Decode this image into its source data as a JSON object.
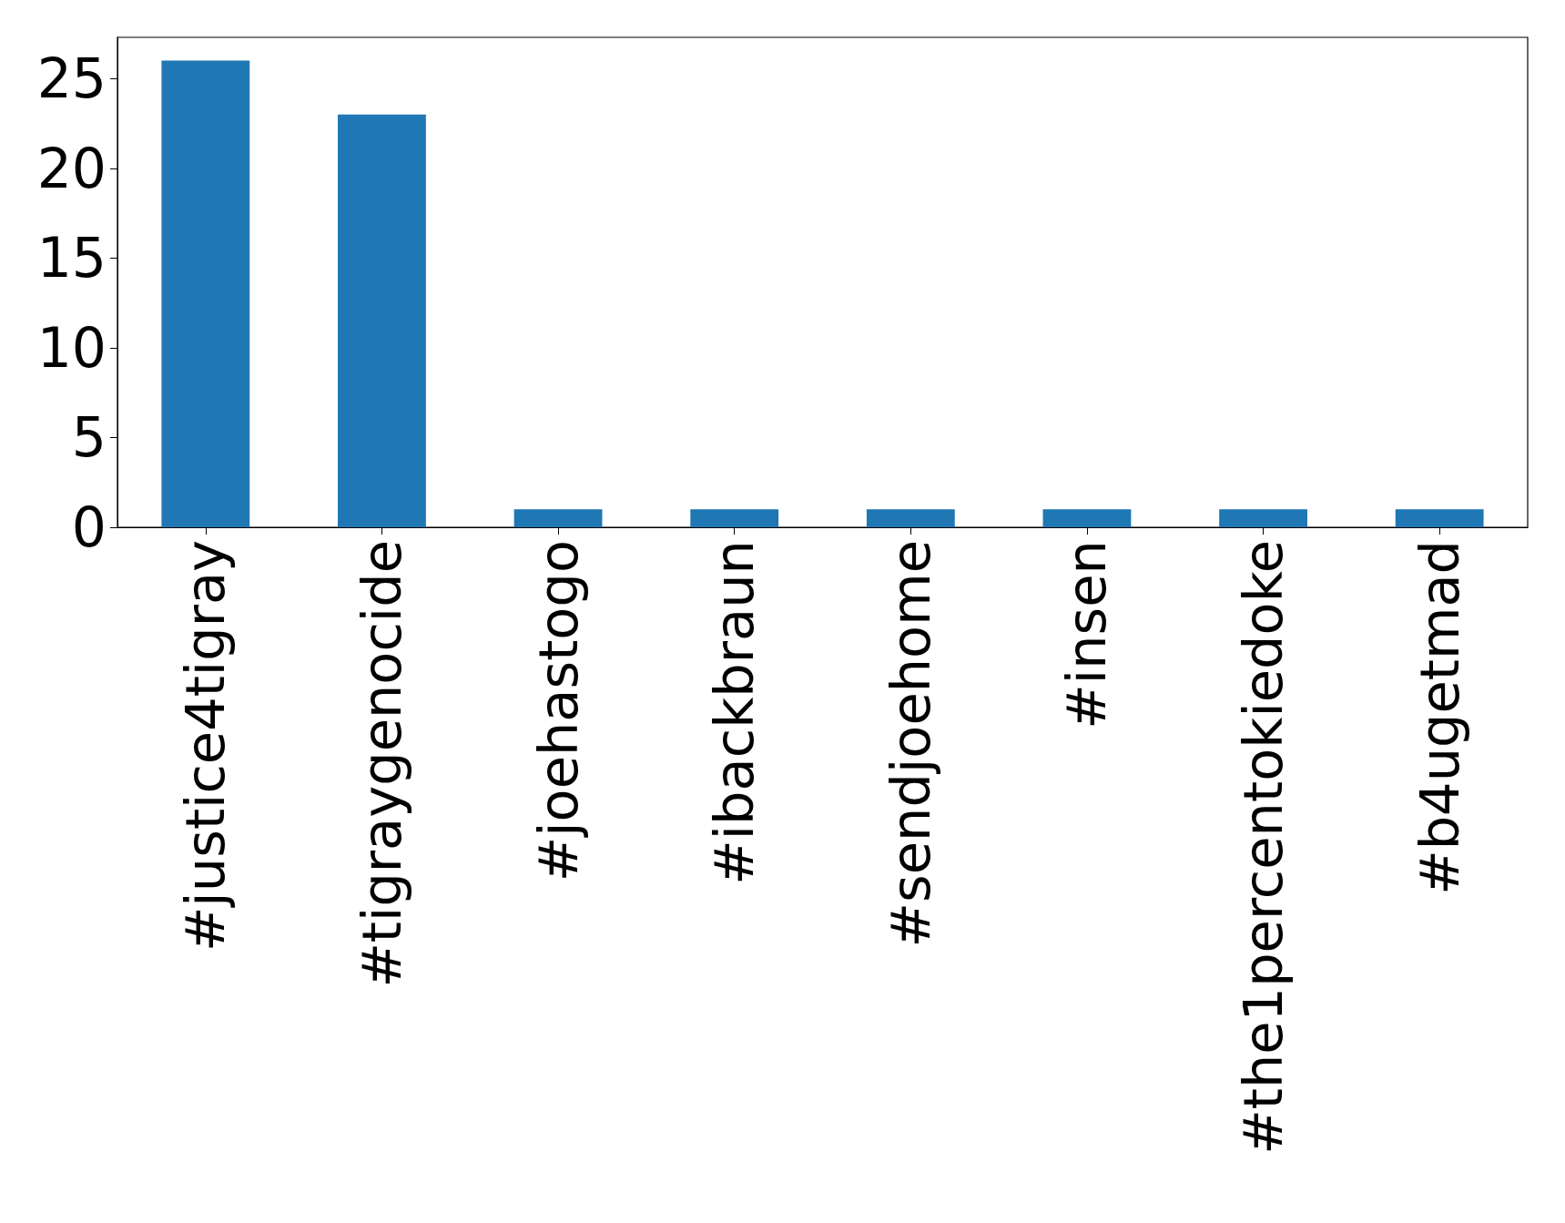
{
  "chart_data": {
    "type": "bar",
    "categories": [
      "#justice4tigray",
      "#tigraygenocide",
      "#joehastogo",
      "#ibackbraun",
      "#sendjoehome",
      "#insen",
      "#the1percentokiedoke",
      "#b4ugetmad"
    ],
    "values": [
      26,
      23,
      1,
      1,
      1,
      1,
      1,
      1
    ],
    "color": "#1f77b4",
    "ylim": [
      0,
      27.3
    ],
    "yticks": [
      0,
      5,
      10,
      15,
      20,
      25
    ],
    "grid": false
  }
}
